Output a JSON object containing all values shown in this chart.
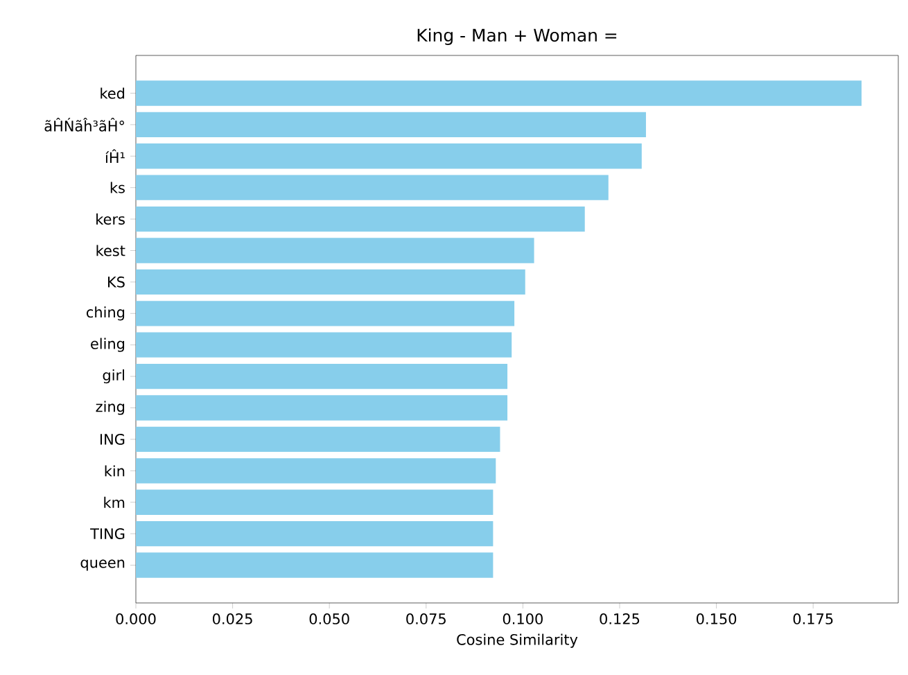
{
  "chart_data": {
    "type": "bar",
    "orientation": "horizontal",
    "title": "King - Man + Woman =",
    "xlabel": "Cosine Similarity",
    "categories": [
      "ked",
      "ãĤŃãĥ³ãĤ°",
      "íĤ¹",
      "ks",
      "kers",
      "kest",
      "KS",
      "ching",
      "eling",
      "girl",
      "zing",
      "ING",
      "kin",
      "km",
      "TING",
      "queen"
    ],
    "values": [
      0.1875,
      0.1318,
      0.1307,
      0.1221,
      0.116,
      0.1029,
      0.1006,
      0.0978,
      0.0971,
      0.096,
      0.096,
      0.0941,
      0.093,
      0.0923,
      0.0923,
      0.0923
    ],
    "color": "#87ceeb",
    "xlim": [
      0,
      0.197
    ],
    "xticks": [
      {
        "value": 0,
        "label": "0.000"
      },
      0.025,
      {
        "value": 0.05,
        "label": "0.050"
      },
      0.075,
      {
        "value": 0.1,
        "label": "0.100"
      },
      0.125,
      {
        "value": 0.15,
        "label": "0.150"
      },
      0.175
    ],
    "grid": false
  }
}
